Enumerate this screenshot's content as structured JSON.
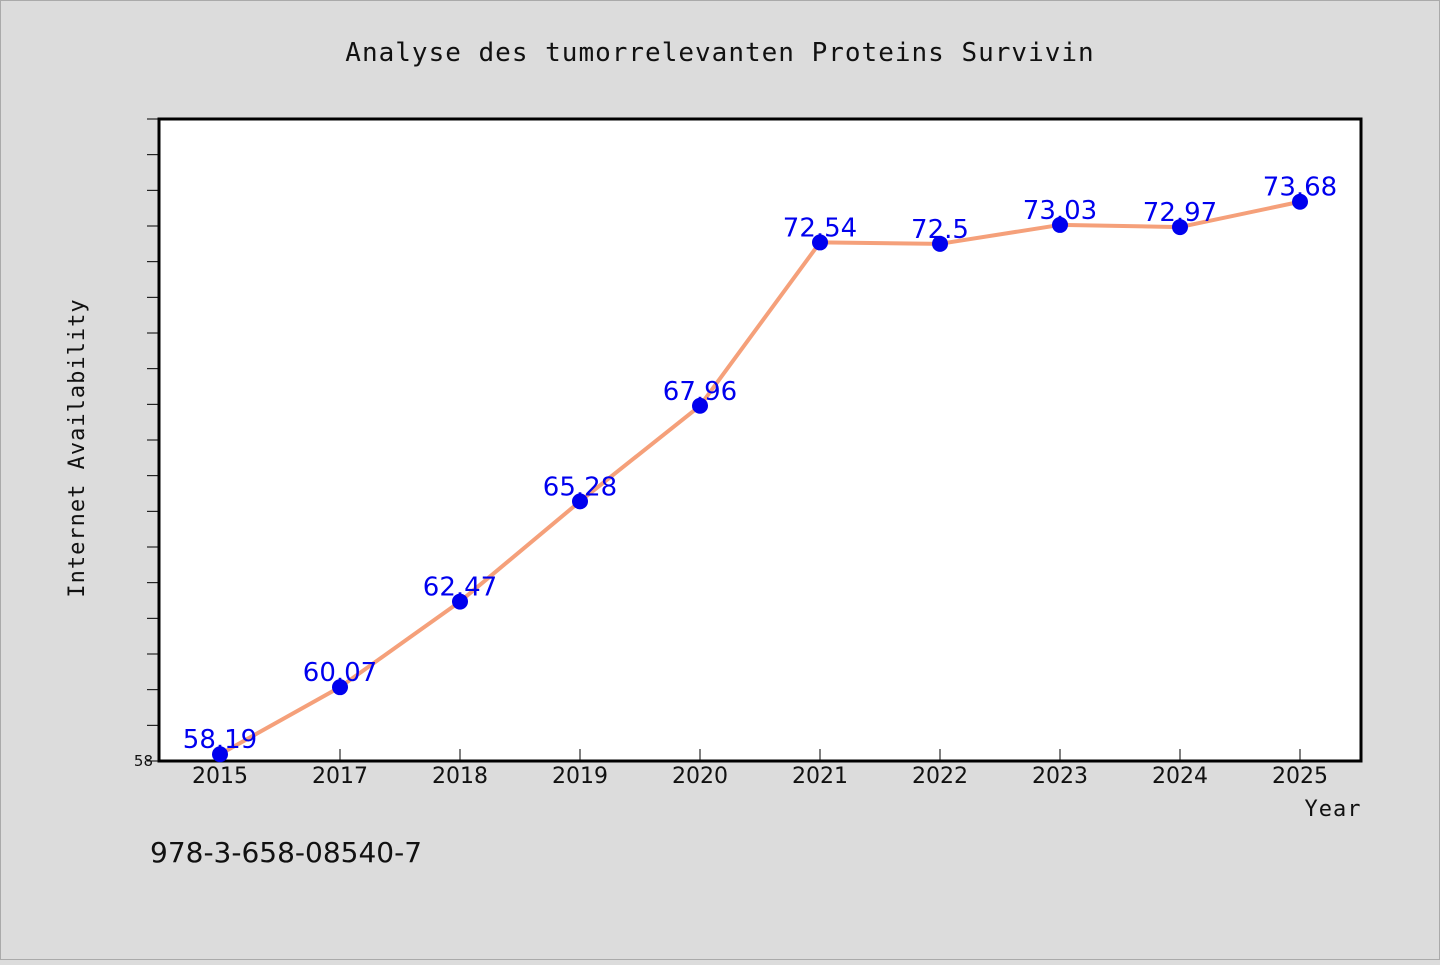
{
  "chart_data": {
    "type": "line",
    "title": "Analyse des tumorrelevanten Proteins Survivin",
    "xlabel": "Year",
    "ylabel": "Internet Availability",
    "categories": [
      "2015",
      "2017",
      "2018",
      "2019",
      "2020",
      "2021",
      "2022",
      "2023",
      "2024",
      "2025"
    ],
    "series": [
      {
        "values": [
          58.19,
          60.07,
          62.47,
          65.28,
          67.96,
          72.54,
          72.5,
          73.03,
          72.97,
          73.68
        ],
        "labels": [
          "58.19",
          "60.07",
          "62.47",
          "65.28",
          "67.96",
          "72.54",
          "72.5",
          "73.03",
          "72.97",
          "73.68"
        ]
      }
    ],
    "ylim": [
      58,
      76
    ],
    "ytick_labels": [
      "58"
    ],
    "grid": false,
    "legend": "none"
  },
  "footer": {
    "isbn": "978-3-658-08540-7"
  },
  "colors": {
    "line": "#f5a07a",
    "marker": "#0000ee",
    "data_label": "#0000ee",
    "background": "#dcdcdc",
    "plot_background": "#ffffff"
  }
}
